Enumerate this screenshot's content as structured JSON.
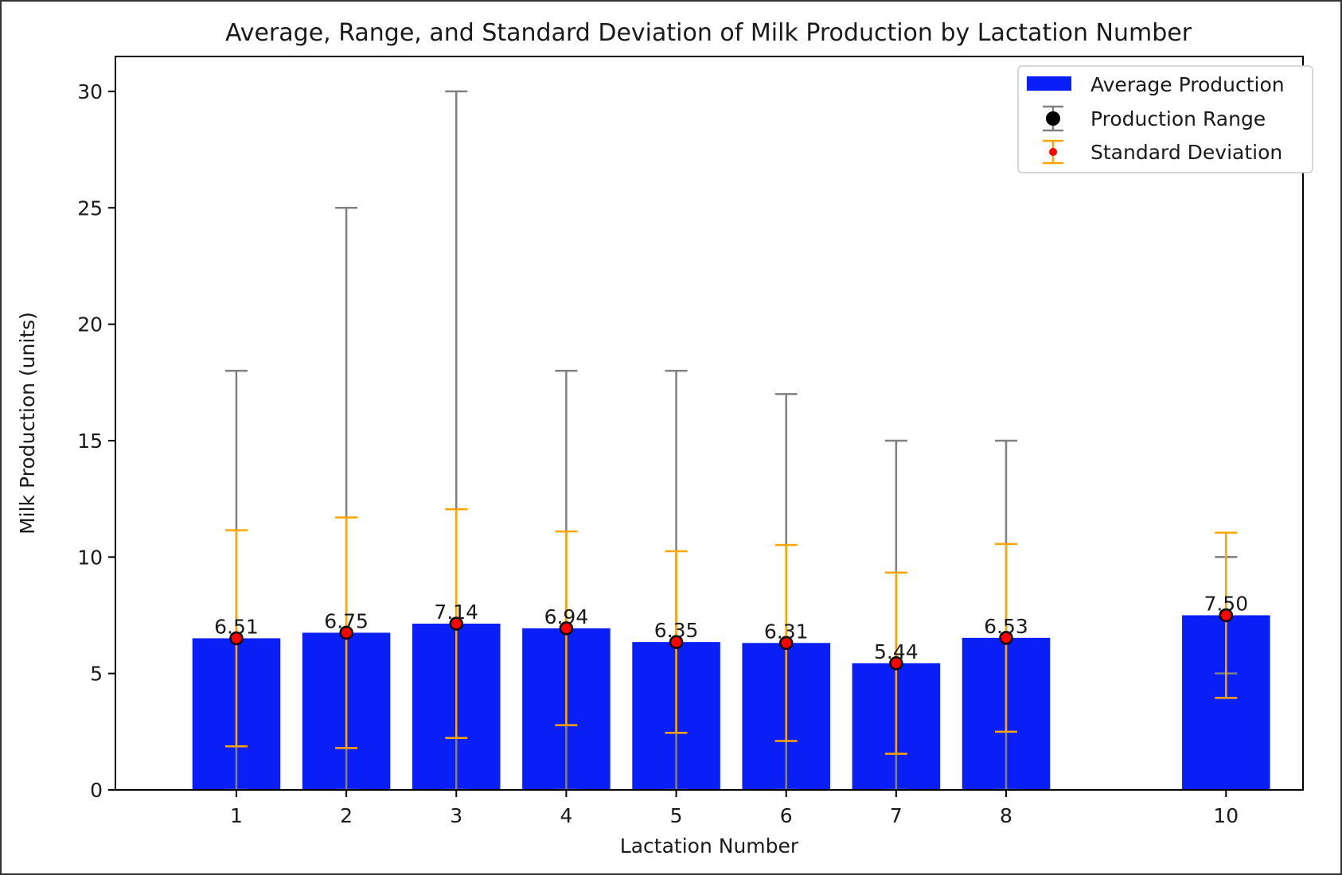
{
  "chart_data": {
    "type": "bar",
    "title": "Average, Range, and Standard Deviation of Milk Production by Lactation Number",
    "xlabel": "Lactation Number",
    "ylabel": "Milk Production (units)",
    "categories": [
      "1",
      "2",
      "3",
      "4",
      "5",
      "6",
      "7",
      "8",
      "10"
    ],
    "x": [
      1,
      2,
      3,
      4,
      5,
      6,
      7,
      8,
      10
    ],
    "xlim": [
      -0.1,
      10.7
    ],
    "ylim": [
      0,
      31.5
    ],
    "yticks": [
      0,
      5,
      10,
      15,
      20,
      25,
      30
    ],
    "grid": false,
    "legend_position": "top-right",
    "series": [
      {
        "name": "Average Production",
        "kind": "bar",
        "values": [
          6.51,
          6.75,
          7.14,
          6.94,
          6.35,
          6.31,
          5.44,
          6.53,
          7.5
        ],
        "color": "#0a1ff5"
      },
      {
        "name": "Production Range",
        "kind": "errorbar",
        "min": [
          0,
          0,
          0,
          0,
          0,
          0,
          0,
          0,
          5
        ],
        "max": [
          18,
          25,
          30,
          18,
          18,
          17,
          15,
          15,
          10
        ],
        "color": "#808080",
        "marker_color": "#000000"
      },
      {
        "name": "Standard Deviation",
        "kind": "errorbar",
        "lower": [
          1.87,
          1.8,
          2.23,
          2.78,
          2.45,
          2.1,
          1.55,
          2.5,
          3.95
        ],
        "upper": [
          11.15,
          11.7,
          12.05,
          11.1,
          10.25,
          10.52,
          9.33,
          10.56,
          11.05
        ],
        "color": "#ffa500",
        "marker_color": "#ff0000"
      }
    ],
    "data_labels": [
      "6.51",
      "6.75",
      "7.14",
      "6.94",
      "6.35",
      "6.31",
      "5.44",
      "6.53",
      "7.50"
    ]
  }
}
